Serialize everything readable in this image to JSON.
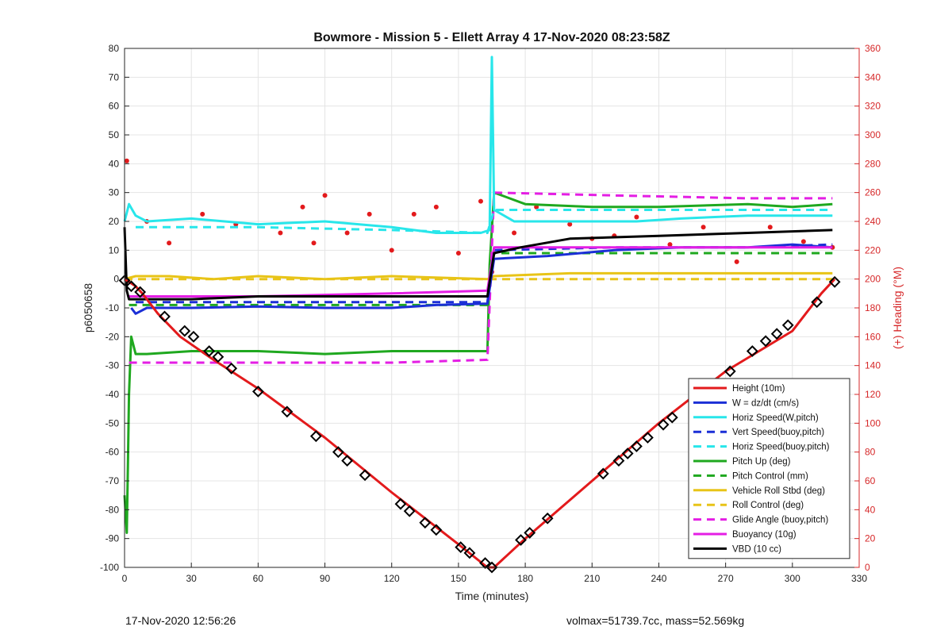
{
  "footer": {
    "left": "17-Nov-2020 12:56:26",
    "right": "volmax=51739.7cc, mass=52.569kg"
  },
  "chart_data": {
    "type": "line",
    "title": "Bowmore - Mission 5 - Ellett Array 4 17-Nov-2020 08:23:58Z",
    "xlabel": "Time (minutes)",
    "ylabel": "p6050658",
    "y2label": "(+) Heading (°M)",
    "xlim": [
      0,
      330
    ],
    "ylim": [
      -100,
      80
    ],
    "y2lim": [
      0,
      360
    ],
    "xticks": [
      0,
      30,
      60,
      90,
      120,
      150,
      180,
      210,
      240,
      270,
      300,
      330
    ],
    "yticks": [
      -100,
      -90,
      -80,
      -70,
      -60,
      -50,
      -40,
      -30,
      -20,
      -10,
      0,
      10,
      20,
      30,
      40,
      50,
      60,
      70,
      80
    ],
    "y2ticks": [
      0,
      20,
      40,
      60,
      80,
      100,
      120,
      140,
      160,
      180,
      200,
      220,
      240,
      260,
      280,
      300,
      320,
      340,
      360
    ],
    "grid": true,
    "legend_position": "bottom-right",
    "colors": {
      "red": "#e31a1c",
      "blue": "#1b2fd6",
      "cyan": "#28e6ea",
      "green": "#1fa81f",
      "yellow": "#e8c418",
      "magenta": "#e41ee4",
      "black": "#000000",
      "heading_axis": "#d62728"
    },
    "series": [
      {
        "name": "Height (10m)",
        "style": "solid",
        "color": "red",
        "x": [
          0,
          2,
          5,
          8,
          15,
          25,
          40,
          60,
          90,
          120,
          150,
          163,
          166,
          180,
          210,
          240,
          270,
          300,
          313,
          319
        ],
        "y": [
          0,
          -1,
          -2.5,
          -5,
          -12,
          -20,
          -28,
          -38,
          -55,
          -74,
          -92,
          -100,
          -100,
          -90,
          -70,
          -50,
          -32,
          -18,
          -5,
          0
        ]
      },
      {
        "name": "W = dz/dt (cm/s)",
        "style": "solid",
        "color": "blue",
        "x": [
          3,
          5,
          10,
          30,
          60,
          90,
          120,
          140,
          163,
          166,
          190,
          220,
          250,
          280,
          300,
          318
        ],
        "y": [
          -10,
          -12,
          -10,
          -10,
          -9.5,
          -10,
          -10,
          -9,
          -8.5,
          7,
          8,
          10,
          11,
          11,
          12,
          11
        ]
      },
      {
        "name": "Horiz Speed(W,pitch)",
        "style": "solid",
        "color": "cyan",
        "x": [
          0,
          2,
          5,
          10,
          30,
          60,
          90,
          120,
          140,
          160,
          164,
          165,
          166,
          175,
          200,
          230,
          250,
          280,
          300,
          318
        ],
        "y": [
          20,
          26,
          22,
          20,
          21,
          19,
          20,
          18,
          16,
          16,
          17,
          77,
          24,
          20,
          20,
          20,
          21,
          22,
          22,
          22
        ]
      },
      {
        "name": "Vert Speed(buoy,pitch)",
        "style": "dash",
        "color": "blue",
        "x": [
          5,
          60,
          120,
          163,
          166,
          220,
          280,
          318
        ],
        "y": [
          -8,
          -8,
          -8,
          -8,
          10,
          11,
          11,
          12
        ]
      },
      {
        "name": "Horiz Speed(buoy,pitch)",
        "style": "dash",
        "color": "cyan",
        "x": [
          5,
          60,
          120,
          163,
          166,
          220,
          280,
          318
        ],
        "y": [
          18,
          18,
          17,
          16,
          24,
          24,
          24,
          24
        ]
      },
      {
        "name": "Pitch Up (deg)",
        "style": "solid",
        "color": "green",
        "x": [
          0,
          1,
          1.5,
          2,
          3,
          5,
          10,
          30,
          60,
          90,
          120,
          163,
          164,
          166,
          180,
          210,
          240,
          280,
          300,
          318
        ],
        "y": [
          -75,
          -88,
          -65,
          -40,
          -20,
          -26,
          -26,
          -25,
          -25,
          -26,
          -25,
          -25,
          5,
          30,
          26,
          25,
          25,
          26,
          25,
          26
        ]
      },
      {
        "name": "Pitch Control (mm)",
        "style": "dash",
        "color": "green",
        "x": [
          2,
          60,
          120,
          163,
          166,
          220,
          280,
          318
        ],
        "y": [
          -9,
          -9,
          -9,
          -9,
          9,
          9,
          9,
          9
        ]
      },
      {
        "name": "Vehicle Roll Stbd (deg)",
        "style": "solid",
        "color": "yellow",
        "x": [
          0,
          5,
          20,
          40,
          60,
          90,
          120,
          163,
          166,
          200,
          240,
          280,
          318
        ],
        "y": [
          0,
          1,
          1,
          0,
          1,
          0,
          1,
          0,
          1,
          2,
          2,
          2,
          2
        ]
      },
      {
        "name": "Roll Control (deg)",
        "style": "dash",
        "color": "yellow",
        "x": [
          0,
          60,
          120,
          163,
          166,
          220,
          280,
          318
        ],
        "y": [
          0,
          0,
          0,
          0,
          0,
          0,
          0,
          0
        ]
      },
      {
        "name": "Glide Angle (buoy,pitch)",
        "style": "dash",
        "color": "magenta",
        "x": [
          2,
          60,
          120,
          163,
          166,
          220,
          280,
          318
        ],
        "y": [
          -29,
          -29,
          -29,
          -28,
          30,
          29,
          28,
          28
        ]
      },
      {
        "name": "Buoyancy (10g)",
        "style": "solid",
        "color": "magenta",
        "x": [
          2,
          60,
          120,
          163,
          166,
          220,
          280,
          318
        ],
        "y": [
          -6,
          -6,
          -5,
          -4,
          11,
          11,
          11,
          11
        ]
      },
      {
        "name": "VBD (10 cc)",
        "style": "solid",
        "color": "black",
        "x": [
          0,
          1,
          2,
          5,
          30,
          60,
          100,
          163,
          166,
          178,
          200,
          240,
          280,
          318
        ],
        "y": [
          18,
          -4,
          -7,
          -7,
          -7,
          -6,
          -6,
          -6,
          9,
          11,
          14,
          15,
          16,
          17
        ]
      }
    ],
    "heading_points": {
      "name": "Heading (°M)",
      "color": "red",
      "axis": "right",
      "x": [
        1,
        10,
        20,
        35,
        50,
        70,
        80,
        85,
        90,
        100,
        110,
        120,
        130,
        140,
        150,
        160,
        165,
        175,
        185,
        200,
        210,
        220,
        230,
        245,
        260,
        275,
        290,
        305,
        318
      ],
      "y": [
        282,
        240,
        225,
        245,
        238,
        232,
        250,
        225,
        258,
        232,
        245,
        220,
        245,
        250,
        218,
        254,
        205,
        232,
        250,
        238,
        228,
        230,
        243,
        224,
        236,
        212,
        236,
        226,
        222
      ]
    },
    "markers": {
      "name": "depth markers",
      "color": "black",
      "x": [
        0,
        3,
        7,
        18,
        27,
        31,
        38,
        42,
        48,
        60,
        73,
        86,
        96,
        100,
        108,
        124,
        128,
        135,
        140,
        151,
        155,
        162,
        165,
        178,
        182,
        190,
        215,
        222,
        226,
        230,
        235,
        242,
        246,
        263,
        272,
        282,
        288,
        293,
        298,
        311,
        319
      ],
      "y": [
        -0.5,
        -2.5,
        -4.5,
        -13,
        -18,
        -20,
        -25,
        -27,
        -31,
        -39,
        -46,
        -54.5,
        -60,
        -63,
        -68,
        -78,
        -80.5,
        -84.5,
        -87,
        -93,
        -95,
        -98.5,
        -100,
        -90.5,
        -88,
        -83,
        -67.5,
        -63,
        -60.5,
        -58,
        -55,
        -50.5,
        -48,
        -38,
        -32,
        -25,
        -21.5,
        -19,
        -16,
        -8,
        -1
      ]
    }
  }
}
